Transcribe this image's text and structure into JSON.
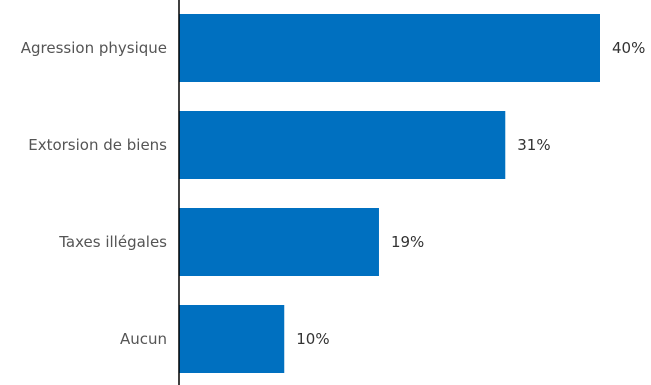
{
  "chart_data": {
    "type": "bar",
    "orientation": "horizontal",
    "categories": [
      "Agression physique",
      "Extorsion de biens",
      "Taxes illégales",
      "Aucun"
    ],
    "values": [
      40,
      31,
      19,
      10
    ],
    "value_labels": [
      "40%",
      "31%",
      "19%",
      "10%"
    ],
    "unit": "%",
    "xlim": [
      0,
      43
    ],
    "grid": false,
    "legend": "none",
    "colors": {
      "bar": "#0070c0",
      "axis": "#000000"
    }
  }
}
